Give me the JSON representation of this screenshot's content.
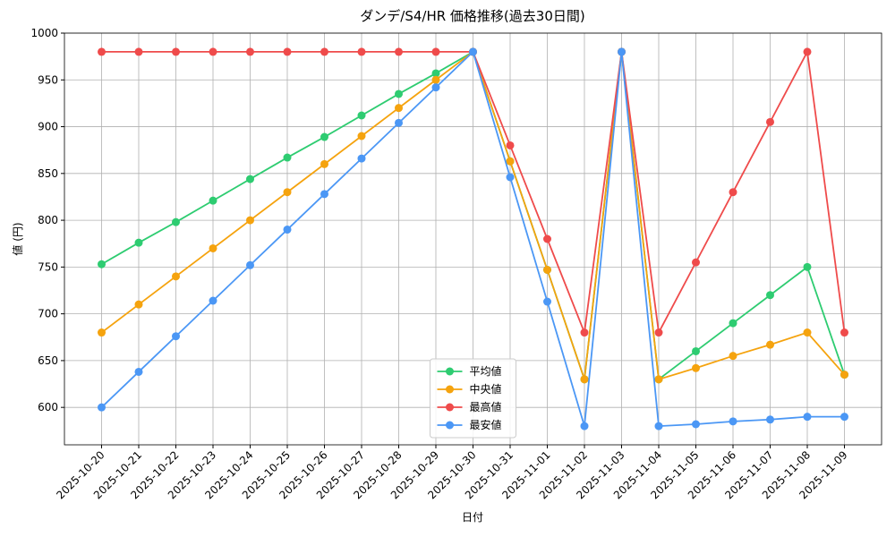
{
  "chart_data": {
    "type": "line",
    "title": "ダンデ/S4/HR 価格推移(過去30日間)",
    "x_label": "日付",
    "y_label": "値 (円)",
    "categories": [
      "2025-10-20",
      "2025-10-21",
      "2025-10-22",
      "2025-10-23",
      "2025-10-24",
      "2025-10-25",
      "2025-10-26",
      "2025-10-27",
      "2025-10-28",
      "2025-10-29",
      "2025-10-30",
      "2025-10-31",
      "2025-11-01",
      "2025-11-02",
      "2025-11-03",
      "2025-11-04",
      "2025-11-05",
      "2025-11-06",
      "2025-11-07",
      "2025-11-08",
      "2025-11-09"
    ],
    "series": [
      {
        "name": "平均値",
        "color": "#2ecc71",
        "values": [
          753,
          776,
          798,
          821,
          844,
          867,
          889,
          912,
          935,
          957,
          980,
          863,
          747,
          630,
          980,
          630,
          660,
          690,
          720,
          750,
          635
        ]
      },
      {
        "name": "中央値",
        "color": "#f5a30e",
        "values": [
          680,
          710,
          740,
          770,
          800,
          830,
          860,
          890,
          920,
          950,
          980,
          863,
          747,
          630,
          980,
          630,
          642,
          655,
          667,
          680,
          635
        ]
      },
      {
        "name": "最高値",
        "color": "#ef4b4b",
        "values": [
          980,
          980,
          980,
          980,
          980,
          980,
          980,
          980,
          980,
          980,
          980,
          880,
          780,
          680,
          980,
          680,
          755,
          830,
          905,
          980,
          680
        ]
      },
      {
        "name": "最安値",
        "color": "#4b97f5",
        "values": [
          600,
          638,
          676,
          714,
          752,
          790,
          828,
          866,
          904,
          942,
          980,
          846,
          713,
          580,
          980,
          580,
          582,
          585,
          587,
          590,
          590
        ]
      }
    ],
    "ylim": [
      560,
      1000
    ],
    "yticks": [
      600,
      650,
      700,
      750,
      800,
      850,
      900,
      950,
      1000
    ],
    "grid": true,
    "legend": "lower center"
  }
}
